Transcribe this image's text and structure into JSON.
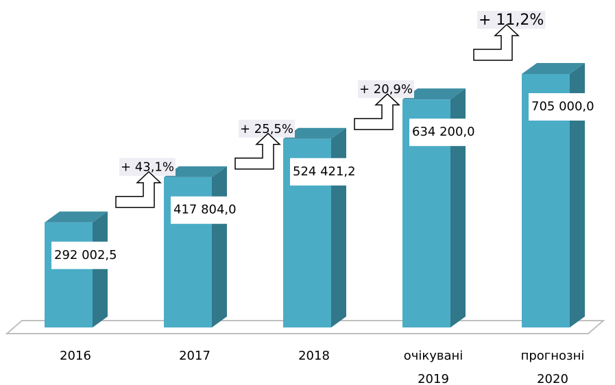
{
  "chart_data": {
    "type": "bar3d",
    "categories": [
      "2016",
      "2017",
      "2018",
      "очікувані 2019",
      "прогнозні 2020"
    ],
    "values": [
      292002.5,
      417804.0,
      524421.2,
      634200.0,
      705000.0
    ],
    "value_labels": [
      "292 002,5",
      "417 804,0",
      "524 421,2",
      "634 200,0",
      "705 000,0"
    ],
    "growth": {
      "values": [
        43.1,
        25.5,
        20.9,
        11.2
      ],
      "value_labels": [
        "+ 43,1%",
        "+ 25,5%",
        "+ 20,9%",
        "+ 11,2%"
      ]
    },
    "colors": {
      "front": "#4bacc6",
      "side": "#31788a",
      "top": "#3e8ea3"
    }
  }
}
